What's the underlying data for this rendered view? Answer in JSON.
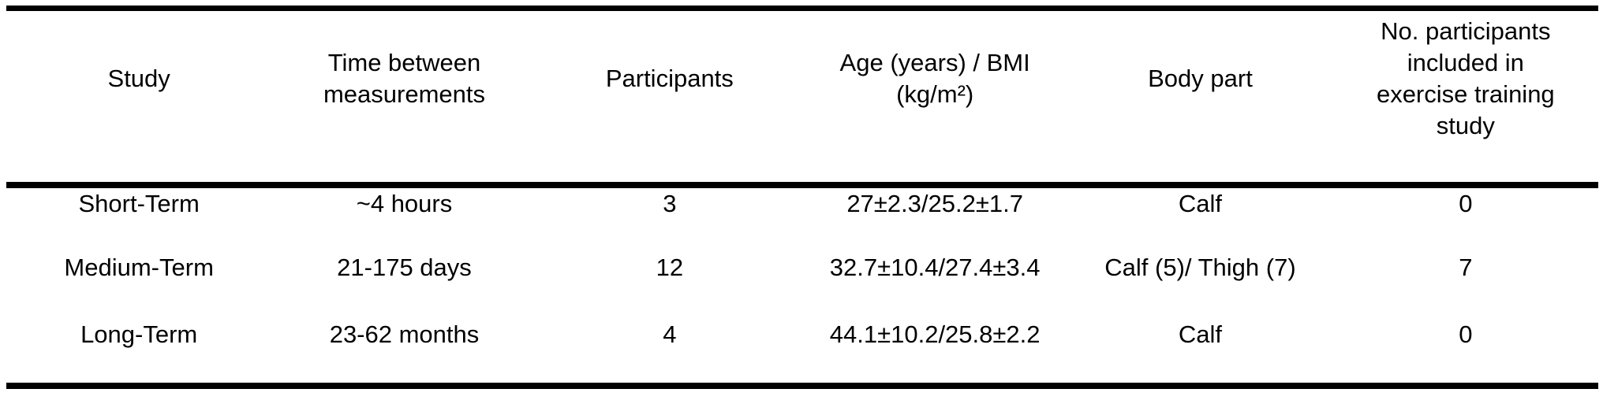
{
  "table": {
    "columns": [
      "Study",
      "Time between measurements",
      "Participants",
      "Age (years) / BMI (kg/m²)",
      "Body part",
      "No. participants included in exercise training study"
    ],
    "rows": [
      [
        "Short-Term",
        "~4 hours",
        "3",
        "27±2.3/25.2±1.7",
        "Calf",
        "0"
      ],
      [
        "Medium-Term",
        "21-175 days",
        "12",
        "32.7±10.4/27.4±3.4",
        "Calf (5)/ Thigh (7)",
        "7"
      ],
      [
        "Long-Term",
        "23-62 months",
        "4",
        "44.1±10.2/25.8±2.2",
        "Calf",
        "0"
      ]
    ]
  }
}
